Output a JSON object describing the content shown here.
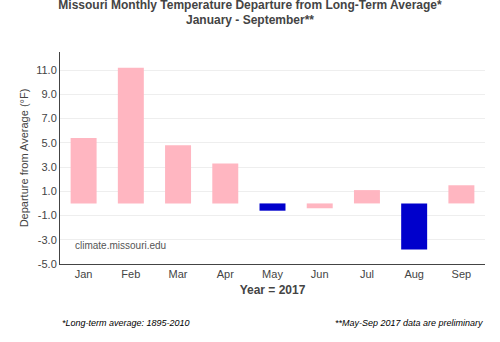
{
  "chart_data": {
    "type": "bar",
    "title": "Missouri Monthly Temperature Departure from Long-Term Average*",
    "subtitle": "January - September**",
    "xlabel": "Year = 2017",
    "ylabel": "Departure from Average (°F)",
    "categories": [
      "Jan",
      "Feb",
      "Mar",
      "Apr",
      "May",
      "Jun",
      "Jul",
      "Aug",
      "Sep"
    ],
    "values": [
      5.4,
      11.2,
      4.8,
      3.3,
      -0.6,
      -0.4,
      1.1,
      -3.8,
      1.5
    ],
    "colors": [
      "#FFB6C1",
      "#FFB6C1",
      "#FFB6C1",
      "#FFB6C1",
      "#0000CC",
      "#FFB6C1",
      "#FFB6C1",
      "#0000CC",
      "#FFB6C1"
    ],
    "ylim": [
      -5.0,
      12.5
    ],
    "yticks": [
      {
        "value": -5.0,
        "label": "-5.0"
      },
      {
        "value": -3.0,
        "label": "-3.0"
      },
      {
        "value": -1.0,
        "label": "-1.0"
      },
      {
        "value": 1.0,
        "label": "1.0"
      },
      {
        "value": 3.0,
        "label": "3.0"
      },
      {
        "value": 5.0,
        "label": "5.0"
      },
      {
        "value": 7.0,
        "label": "7.0"
      },
      {
        "value": 9.0,
        "label": "9.0"
      },
      {
        "value": 11.0,
        "label": "11.0"
      }
    ],
    "grid": true,
    "annotations": [
      "*Long-term average: 1895-2010",
      "**May-Sep 2017 data are preliminary",
      "climate.missouri.edu"
    ]
  }
}
